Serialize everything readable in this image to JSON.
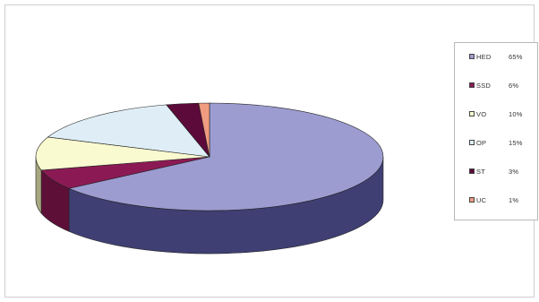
{
  "chart_data": {
    "type": "pie",
    "three_d": true,
    "categories": [
      "HED",
      "SSD",
      "VO",
      "OP",
      "ST",
      "UC"
    ],
    "values": [
      65,
      6,
      10,
      15,
      3,
      1
    ],
    "value_labels": [
      "65%",
      "6%",
      "10%",
      "15%",
      "3%",
      "1%"
    ],
    "colors": [
      "#9c9cd1",
      "#8b1a54",
      "#fafad0",
      "#dfeef6",
      "#5c0a3a",
      "#f09c80"
    ],
    "side_colors": [
      "#3f3f74",
      "#5e0f38",
      "#a8a880",
      "#93a3ae",
      "#3a0424",
      "#a8604a"
    ],
    "legend_position": "right",
    "title": ""
  }
}
